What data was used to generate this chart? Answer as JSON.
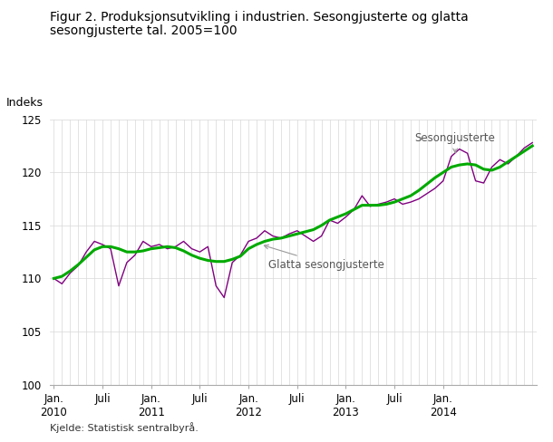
{
  "title_line1": "Figur 2. Produksjonsutvikling i industrien. Sesongjusterte og glatta",
  "title_line2": "sesongjusterte tal. 2005=100",
  "ylabel": "Indeks",
  "source": "Kjelde: Statistisk sentralbyrå.",
  "ylim": [
    100,
    125
  ],
  "yticks": [
    100,
    105,
    110,
    115,
    120,
    125
  ],
  "color_seasonal": "#800080",
  "color_smooth": "#00aa00",
  "annotation_seasonal": "Sesongjusterte",
  "annotation_smooth": "Glatta sesongjusterte",
  "xtick_positions": [
    0,
    6,
    12,
    18,
    24,
    30,
    36,
    42,
    48
  ],
  "xtick_labels": [
    "Jan.\n2010",
    "Juli",
    "Jan.\n2011",
    "Juli",
    "Jan.\n2012",
    "Juli",
    "Jan.\n2013",
    "Juli",
    "Jan.\n2014"
  ],
  "seasonal": [
    110.0,
    109.5,
    110.5,
    111.2,
    112.5,
    113.5,
    113.2,
    112.8,
    109.3,
    111.5,
    112.2,
    113.5,
    113.0,
    113.2,
    112.8,
    113.0,
    113.5,
    112.8,
    112.5,
    113.0,
    109.3,
    108.2,
    111.5,
    112.2,
    113.5,
    113.8,
    114.5,
    114.0,
    113.8,
    114.2,
    114.5,
    114.0,
    113.5,
    114.0,
    115.5,
    115.2,
    115.8,
    116.5,
    117.8,
    116.8,
    117.0,
    117.2,
    117.5,
    117.0,
    117.2,
    117.5,
    118.0,
    118.5,
    119.2,
    121.5,
    122.2,
    121.8,
    119.2,
    119.0,
    120.5,
    121.2,
    120.8,
    121.5,
    122.3,
    122.8
  ],
  "smooth": [
    110.0,
    110.2,
    110.7,
    111.3,
    112.0,
    112.7,
    113.0,
    113.0,
    112.8,
    112.5,
    112.5,
    112.6,
    112.8,
    112.9,
    113.0,
    112.9,
    112.6,
    112.2,
    111.9,
    111.7,
    111.6,
    111.6,
    111.8,
    112.1,
    112.8,
    113.2,
    113.5,
    113.7,
    113.8,
    114.0,
    114.2,
    114.4,
    114.6,
    115.0,
    115.5,
    115.8,
    116.1,
    116.5,
    116.9,
    116.9,
    116.9,
    117.0,
    117.2,
    117.5,
    117.8,
    118.3,
    118.9,
    119.5,
    120.0,
    120.5,
    120.7,
    120.8,
    120.7,
    120.3,
    120.2,
    120.5,
    121.0,
    121.5,
    122.0,
    122.5
  ]
}
